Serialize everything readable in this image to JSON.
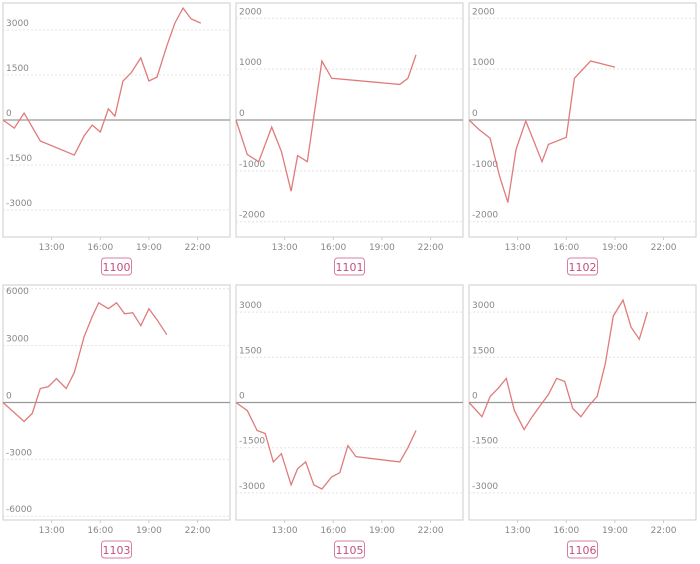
{
  "chart_data": [
    {
      "type": "line",
      "title": "1100",
      "color": "#e07b7b",
      "x": [
        10,
        10.7,
        11.3,
        12.3,
        14.4,
        15,
        15.5,
        16,
        16.5,
        16.9,
        17.4,
        17.9,
        18.5,
        19,
        19.5,
        20.1,
        20.6,
        21.1,
        21.6,
        22.2
      ],
      "values": [
        0,
        -270,
        230,
        -700,
        -1170,
        -530,
        -170,
        -400,
        370,
        130,
        1300,
        1570,
        2070,
        1300,
        1430,
        2470,
        3230,
        3730,
        3370,
        3230
      ],
      "xlim": [
        10,
        24
      ],
      "xticks": [
        {
          "value": 13,
          "label": "13:00"
        },
        {
          "value": 16,
          "label": "16:00"
        },
        {
          "value": 19,
          "label": "19:00"
        },
        {
          "value": 22,
          "label": "22:00"
        }
      ],
      "ylim": [
        -3900,
        3900
      ],
      "yticks": [
        -3000,
        -1500,
        0,
        1500,
        3000
      ]
    },
    {
      "type": "line",
      "title": "1101",
      "color": "#e07b7b",
      "x": [
        10,
        10.7,
        11.4,
        12.2,
        12.8,
        13.4,
        13.8,
        14.4,
        15.3,
        15.9,
        20.1,
        20.6,
        21.1
      ],
      "values": [
        0,
        -680,
        -820,
        -140,
        -620,
        -1400,
        -700,
        -820,
        1160,
        820,
        700,
        820,
        1280
      ],
      "xlim": [
        10,
        24
      ],
      "xticks": [
        {
          "value": 13,
          "label": "13:00"
        },
        {
          "value": 16,
          "label": "16:00"
        },
        {
          "value": 19,
          "label": "19:00"
        },
        {
          "value": 22,
          "label": "22:00"
        }
      ],
      "ylim": [
        -2300,
        2300
      ],
      "yticks": [
        -2000,
        -1000,
        0,
        1000,
        2000
      ]
    },
    {
      "type": "line",
      "title": "1102",
      "color": "#e07b7b",
      "x": [
        10,
        10.6,
        11.3,
        11.9,
        12.4,
        12.9,
        13.5,
        14.5,
        14.9,
        16,
        16.5,
        17.5,
        19
      ],
      "values": [
        0,
        -180,
        -360,
        -1120,
        -1620,
        -580,
        -20,
        -820,
        -480,
        -340,
        820,
        1160,
        1040
      ],
      "xlim": [
        10,
        24
      ],
      "xticks": [
        {
          "value": 13,
          "label": "13:00"
        },
        {
          "value": 16,
          "label": "16:00"
        },
        {
          "value": 19,
          "label": "19:00"
        },
        {
          "value": 22,
          "label": "22:00"
        }
      ],
      "ylim": [
        -2300,
        2300
      ],
      "yticks": [
        -2000,
        -1000,
        0,
        1000,
        2000
      ]
    },
    {
      "type": "line",
      "title": "1103",
      "color": "#e07b7b",
      "x": [
        10,
        11.3,
        11.8,
        12.3,
        12.8,
        13.3,
        13.9,
        14.4,
        15,
        15.5,
        15.9,
        16.5,
        17,
        17.5,
        18,
        18.5,
        19,
        19.5,
        20.1
      ],
      "values": [
        0,
        -1000,
        -580,
        740,
        840,
        1260,
        740,
        1580,
        3470,
        4530,
        5260,
        4950,
        5260,
        4680,
        4740,
        4050,
        4950,
        4370,
        3580
      ],
      "xlim": [
        10,
        24
      ],
      "xticks": [
        {
          "value": 13,
          "label": "13:00"
        },
        {
          "value": 16,
          "label": "16:00"
        },
        {
          "value": 19,
          "label": "19:00"
        },
        {
          "value": 22,
          "label": "22:00"
        }
      ],
      "ylim": [
        -6200,
        6200
      ],
      "yticks": [
        -6000,
        -3000,
        0,
        3000,
        6000
      ]
    },
    {
      "type": "line",
      "title": "1105",
      "color": "#e07b7b",
      "x": [
        10,
        10.7,
        11.3,
        11.8,
        12.3,
        12.8,
        13.4,
        13.8,
        14.3,
        14.8,
        15.3,
        15.9,
        16.4,
        16.9,
        17.4,
        20.1,
        20.6,
        21.1
      ],
      "values": [
        0,
        -270,
        -930,
        -1030,
        -1970,
        -1700,
        -2730,
        -2200,
        -1970,
        -2730,
        -2870,
        -2470,
        -2330,
        -1430,
        -1800,
        -1970,
        -1500,
        -930
      ],
      "xlim": [
        10,
        24
      ],
      "xticks": [
        {
          "value": 13,
          "label": "13:00"
        },
        {
          "value": 16,
          "label": "16:00"
        },
        {
          "value": 19,
          "label": "19:00"
        },
        {
          "value": 22,
          "label": "22:00"
        }
      ],
      "ylim": [
        -3900,
        3900
      ],
      "yticks": [
        -3000,
        -1500,
        0,
        1500,
        3000
      ]
    },
    {
      "type": "line",
      "title": "1106",
      "color": "#e07b7b",
      "x": [
        10,
        10.8,
        11.3,
        11.8,
        12.3,
        12.8,
        13.4,
        13.9,
        14.4,
        14.9,
        15.4,
        15.9,
        16.4,
        16.9,
        17.4,
        17.9,
        18.4,
        18.9,
        19.5,
        20,
        20.5,
        21
      ],
      "values": [
        0,
        -470,
        200,
        470,
        800,
        -270,
        -900,
        -470,
        -100,
        270,
        800,
        700,
        -200,
        -470,
        -100,
        200,
        1270,
        2870,
        3400,
        2500,
        2100,
        3000
      ],
      "xlim": [
        10,
        24
      ],
      "xticks": [
        {
          "value": 13,
          "label": "13:00"
        },
        {
          "value": 16,
          "label": "16:00"
        },
        {
          "value": 19,
          "label": "19:00"
        },
        {
          "value": 22,
          "label": "22:00"
        }
      ],
      "ylim": [
        -3900,
        3900
      ],
      "yticks": [
        -3000,
        -1500,
        0,
        1500,
        3000
      ]
    }
  ]
}
